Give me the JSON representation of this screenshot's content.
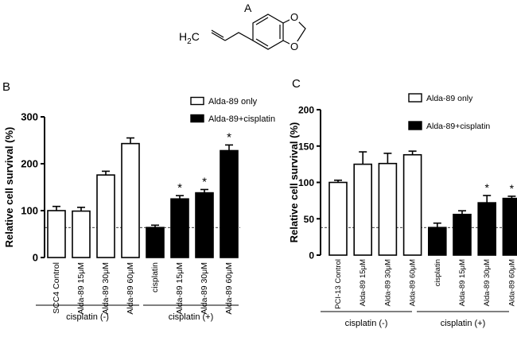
{
  "panels": {
    "A": {
      "letter": "A",
      "formula_label": "H2C",
      "formula_sub": "2"
    },
    "B": {
      "letter": "B"
    },
    "C": {
      "letter": "C"
    }
  },
  "chart_data": [
    {
      "panel": "B",
      "type": "bar",
      "ylabel": "Relative cell survival (%)",
      "ylim": [
        0,
        300
      ],
      "yticks": [
        0,
        100,
        200,
        300
      ],
      "categories": [
        "SCC4 Control",
        "Alda-89 15μM",
        "Alda-89 30μM",
        "Alda-89 60μM",
        "cisplatin",
        "Alda-89 15μM",
        "Alda-89 30μM",
        "Alda-89 60μM"
      ],
      "values": [
        100,
        99,
        176,
        243,
        64,
        125,
        138,
        228
      ],
      "errors": [
        9,
        8,
        8,
        12,
        5,
        7,
        7,
        12
      ],
      "fills": [
        "white",
        "white",
        "white",
        "white",
        "black",
        "black",
        "black",
        "black"
      ],
      "significance": [
        "",
        "",
        "",
        "",
        "",
        "*",
        "*",
        "*"
      ],
      "reference_line": 64,
      "legend": [
        {
          "name": "Alda-89 only",
          "fill": "white"
        },
        {
          "name": "Alda-89+cisplatin",
          "fill": "black"
        }
      ],
      "groups": [
        {
          "label": "cisplatin (-)"
        },
        {
          "label": "cisplatin (+)"
        }
      ]
    },
    {
      "panel": "C",
      "type": "bar",
      "ylabel": "Relative cell survival (%)",
      "ylim": [
        0,
        200
      ],
      "yticks": [
        0,
        50,
        100,
        150,
        200
      ],
      "categories": [
        "PCI-13 Control",
        "Alda-89 15μM",
        "Alda-89 30μM",
        "Alda-89 60μM",
        "cisplatin",
        "Alda-89 15μM",
        "Alda-89 30μM",
        "Alda-89 60μM"
      ],
      "values": [
        100,
        125,
        126,
        138,
        38,
        56,
        72,
        78
      ],
      "errors": [
        3,
        17,
        14,
        5,
        6,
        5,
        10,
        3
      ],
      "fills": [
        "white",
        "white",
        "white",
        "white",
        "black",
        "black",
        "black",
        "black"
      ],
      "significance": [
        "",
        "",
        "",
        "",
        "",
        "",
        "*",
        "*"
      ],
      "reference_line": 38,
      "legend": [
        {
          "name": "Alda-89 only",
          "fill": "white"
        },
        {
          "name": "Alda-89+cisplatin",
          "fill": "black"
        }
      ],
      "groups": [
        {
          "label": "cisplatin (-)"
        },
        {
          "label": "cisplatin (+)"
        }
      ]
    }
  ]
}
